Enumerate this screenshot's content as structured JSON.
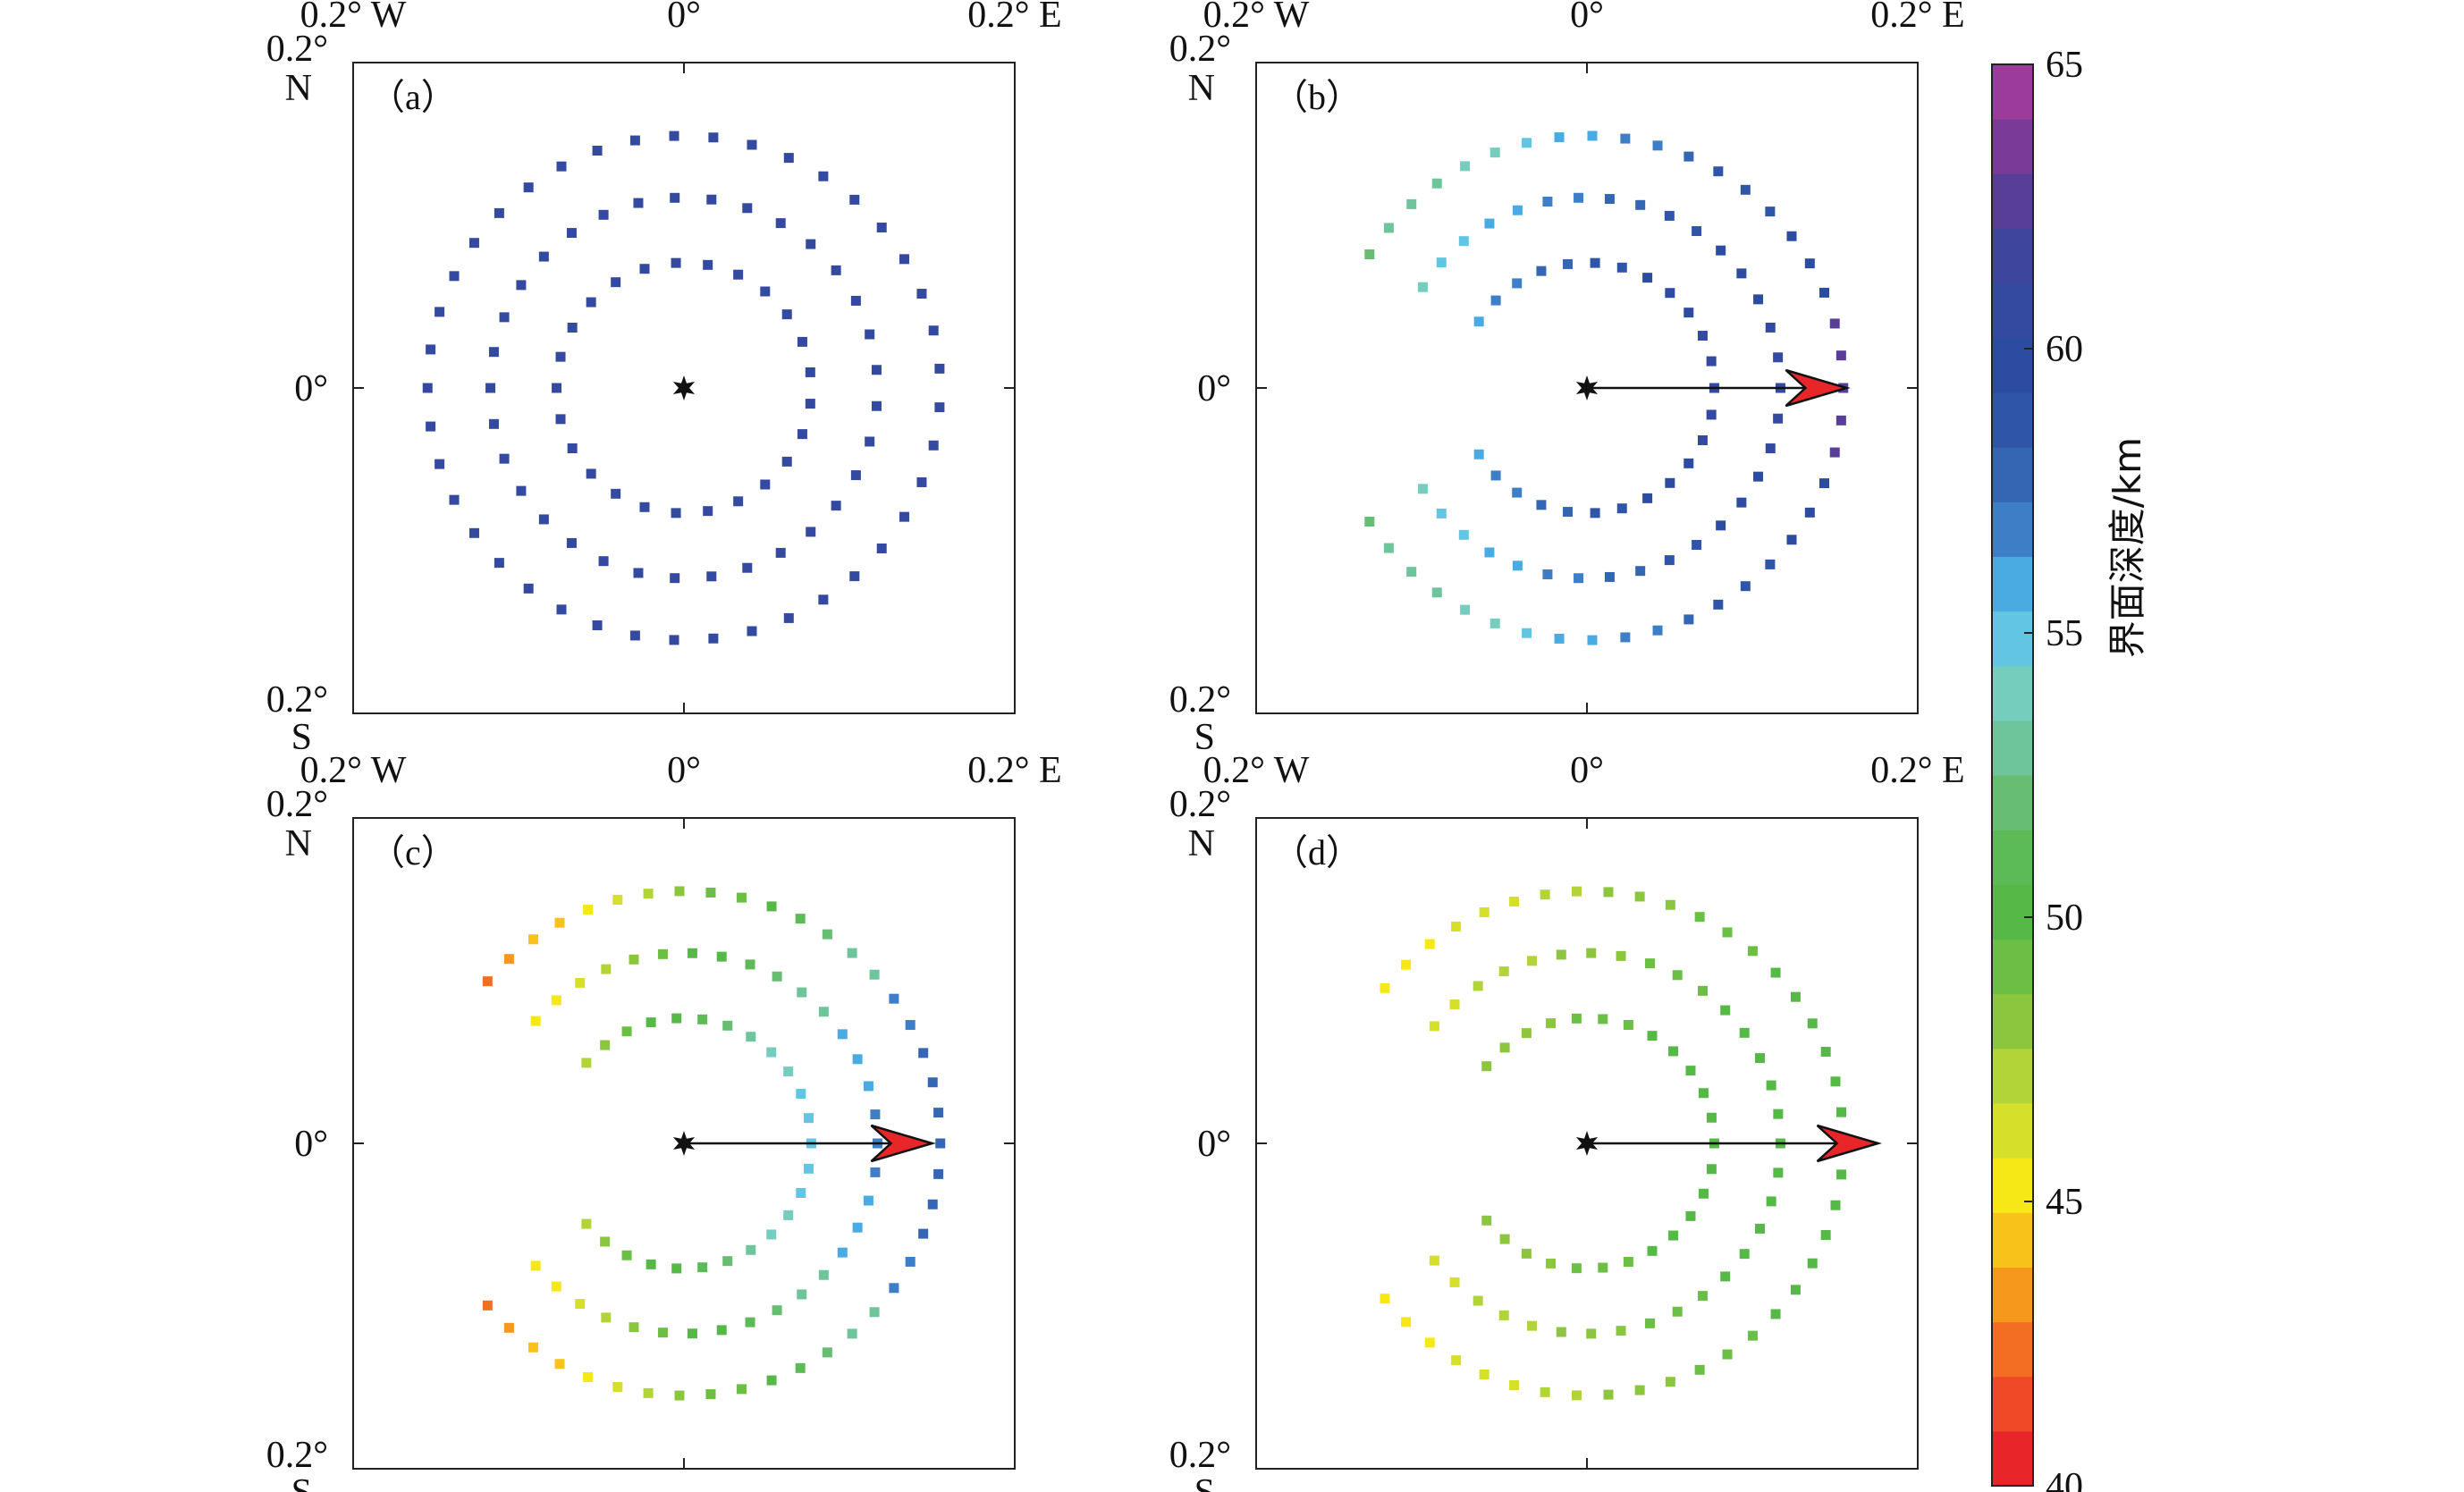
{
  "chart_data": {
    "type": "scatter",
    "coord_labels": {
      "x_left": "0.2° W",
      "x_center": "0°",
      "x_right": "0.2° E",
      "y_top": "0.2°",
      "y_top_dir": "N",
      "y_center": "0°",
      "y_bottom": "0.2°",
      "y_bottom_dir": "S"
    },
    "xlim": [
      -0.2,
      0.2
    ],
    "ylim": [
      -0.2,
      0.2
    ],
    "colorbar": {
      "label": "界面深度/km",
      "min": 40,
      "max": 65,
      "ticks": [
        "40",
        "45",
        "50",
        "55",
        "60",
        "65"
      ],
      "tick_values": [
        40,
        45,
        50,
        55,
        60,
        65
      ],
      "colors": [
        "#e8262a",
        "#ee4a27",
        "#f36e22",
        "#f6981b",
        "#f9c21a",
        "#f6e817",
        "#d6e02a",
        "#b3d438",
        "#8cc63e",
        "#6bbf45",
        "#56b947",
        "#5cbb57",
        "#67be72",
        "#6ec59b",
        "#74cdbd",
        "#62c6e2",
        "#4aaae2",
        "#3d7ec6",
        "#3566b3",
        "#2f55a9",
        "#2c4ca2",
        "#3449a0",
        "#3d459c",
        "#593e97",
        "#7a3a97",
        "#9b3c9b"
      ]
    },
    "rings": [
      {
        "radius": 0.077,
        "count": 25
      },
      {
        "radius": 0.117,
        "count": 33
      },
      {
        "radius": 0.155,
        "count": 41
      }
    ],
    "star": {
      "x": 0,
      "y": 0
    },
    "panels": [
      {
        "label": "（a）",
        "arrow": null,
        "depth_model": {
          "base": 60.5,
          "range": 0,
          "arc_deg": 360
        }
      },
      {
        "label": "（b）",
        "arrow": {
          "x0": 0,
          "y0": 0,
          "x1": 0.157,
          "y1": 0
        },
        "depth_model": {
          "base": 59,
          "slope": 35,
          "arc_deg": 296
        }
      },
      {
        "label": "（c）",
        "arrow": {
          "x0": 0,
          "y0": 0,
          "x1": 0.15,
          "y1": 0
        },
        "depth_model": {
          "base": 50.5,
          "slope": 45,
          "arc_deg": 280
        }
      },
      {
        "label": "（d）",
        "arrow": {
          "x0": 0,
          "y0": 0,
          "x1": 0.176,
          "y1": 0
        },
        "depth_model": {
          "base": 49.5,
          "slope": 25,
          "arc_deg": 284
        }
      }
    ]
  }
}
